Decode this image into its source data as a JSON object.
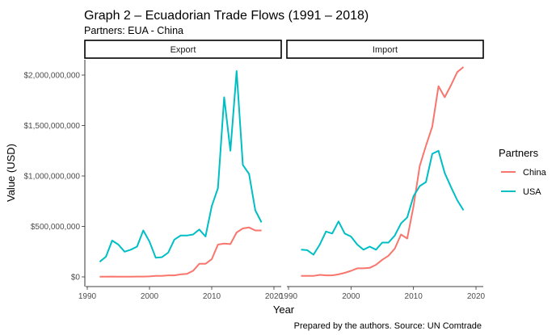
{
  "chart_data": {
    "type": "line",
    "title": "Graph 2 – Ecuadorian Trade Flows (1991 – 2018)",
    "subtitle": "Partners: EUA - China",
    "xlabel": "Year",
    "ylabel": "Value (USD)",
    "caption": "Prepared by the authors. Source: UN Comtrade",
    "legend_title": "Partners",
    "legend_position": "right",
    "grid": false,
    "xlim": [
      1990,
      2020
    ],
    "ylim": [
      0,
      2080000000
    ],
    "x_ticks": [
      1990,
      2000,
      2010,
      2020
    ],
    "x_tick_labels": [
      "1990",
      "2000",
      "2010",
      "2020"
    ],
    "y_ticks": [
      0,
      500000000,
      1000000000,
      1500000000,
      2000000000
    ],
    "y_tick_labels": [
      "$0",
      "$500,000,000",
      "$1,000,000,000",
      "$1,500,000,000",
      "$2,000,000,000"
    ],
    "series_colors": {
      "China": "#F8766D",
      "USA": "#00BFC4"
    },
    "panels": [
      {
        "label": "Export",
        "x": [
          1992,
          1993,
          1994,
          1995,
          1996,
          1997,
          1998,
          1999,
          2000,
          2001,
          2002,
          2003,
          2004,
          2005,
          2006,
          2007,
          2008,
          2009,
          2010,
          2011,
          2012,
          2013,
          2014,
          2015,
          2016,
          2017,
          2018
        ],
        "series": [
          {
            "name": "China",
            "values": [
              2000000,
              2000000,
              3000000,
              2000000,
              2000000,
              2000000,
              3000000,
              3000000,
              5000000,
              10000000,
              10000000,
              15000000,
              15000000,
              25000000,
              30000000,
              60000000,
              130000000,
              130000000,
              175000000,
              320000000,
              330000000,
              325000000,
              440000000,
              480000000,
              490000000,
              460000000,
              460000000
            ]
          },
          {
            "name": "USA",
            "values": [
              150000000,
              200000000,
              360000000,
              320000000,
              250000000,
              270000000,
              300000000,
              460000000,
              350000000,
              190000000,
              195000000,
              240000000,
              370000000,
              410000000,
              410000000,
              420000000,
              470000000,
              400000000,
              700000000,
              880000000,
              1780000000,
              1250000000,
              2040000000,
              1110000000,
              1020000000,
              660000000,
              540000000
            ]
          }
        ]
      },
      {
        "label": "Import",
        "x": [
          1992,
          1993,
          1994,
          1995,
          1996,
          1997,
          1998,
          1999,
          2000,
          2001,
          2002,
          2003,
          2004,
          2005,
          2006,
          2007,
          2008,
          2009,
          2010,
          2011,
          2012,
          2013,
          2014,
          2015,
          2016,
          2017,
          2018
        ],
        "series": [
          {
            "name": "China",
            "values": [
              10000000,
              10000000,
              10000000,
              20000000,
              15000000,
              15000000,
              25000000,
              40000000,
              60000000,
              85000000,
              85000000,
              90000000,
              120000000,
              170000000,
              210000000,
              280000000,
              420000000,
              380000000,
              700000000,
              1100000000,
              1300000000,
              1490000000,
              1890000000,
              1780000000,
              1900000000,
              2030000000,
              2080000000
            ]
          },
          {
            "name": "USA",
            "values": [
              270000000,
              265000000,
              220000000,
              320000000,
              450000000,
              430000000,
              550000000,
              430000000,
              400000000,
              320000000,
              270000000,
              300000000,
              270000000,
              340000000,
              340000000,
              410000000,
              530000000,
              590000000,
              800000000,
              900000000,
              940000000,
              1220000000,
              1250000000,
              1030000000,
              890000000,
              760000000,
              660000000
            ]
          }
        ]
      }
    ]
  }
}
